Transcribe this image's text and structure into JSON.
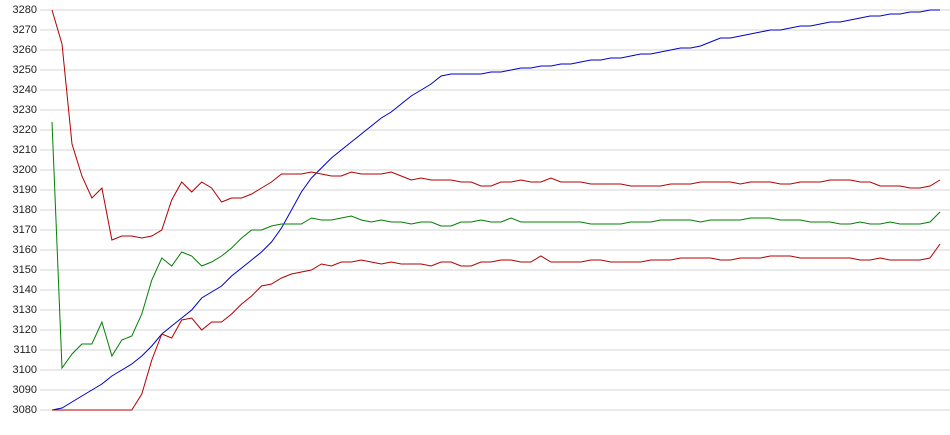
{
  "chart_data": {
    "type": "line",
    "ylim": [
      3080,
      3280
    ],
    "yticks": [
      3080,
      3090,
      3100,
      3110,
      3120,
      3130,
      3140,
      3150,
      3160,
      3170,
      3180,
      3190,
      3200,
      3210,
      3220,
      3230,
      3240,
      3250,
      3260,
      3270,
      3280
    ],
    "grid": true,
    "series": [
      {
        "color": "#0000c8",
        "values": [
          3080,
          3081,
          3084,
          3087,
          3090,
          3093,
          3097,
          3100,
          3103,
          3107,
          3112,
          3118,
          3122,
          3126,
          3130,
          3136,
          3139,
          3142,
          3147,
          3151,
          3155,
          3159,
          3164,
          3171,
          3180,
          3189,
          3196,
          3201,
          3206,
          3210,
          3214,
          3218,
          3222,
          3226,
          3229,
          3233,
          3237,
          3240,
          3243,
          3247,
          3248,
          3248,
          3248,
          3248,
          3249,
          3249,
          3250,
          3251,
          3251,
          3252,
          3252,
          3253,
          3253,
          3254,
          3255,
          3255,
          3256,
          3256,
          3257,
          3258,
          3258,
          3259,
          3260,
          3261,
          3261,
          3262,
          3264,
          3266,
          3266,
          3267,
          3268,
          3269,
          3270,
          3270,
          3271,
          3272,
          3272,
          3273,
          3274,
          3274,
          3275,
          3276,
          3277,
          3277,
          3278,
          3278,
          3279,
          3279,
          3280,
          3280
        ]
      },
      {
        "color": "#008000",
        "values": [
          3224,
          3101,
          3108,
          3113,
          3113,
          3124,
          3107,
          3115,
          3117,
          3128,
          3145,
          3156,
          3152,
          3159,
          3157,
          3152,
          3154,
          3157,
          3161,
          3166,
          3170,
          3170,
          3172,
          3173,
          3173,
          3173,
          3176,
          3175,
          3175,
          3176,
          3177,
          3175,
          3174,
          3175,
          3174,
          3174,
          3173,
          3174,
          3174,
          3172,
          3172,
          3174,
          3174,
          3175,
          3174,
          3174,
          3176,
          3174,
          3174,
          3174,
          3174,
          3174,
          3174,
          3174,
          3173,
          3173,
          3173,
          3173,
          3174,
          3174,
          3174,
          3175,
          3175,
          3175,
          3175,
          3174,
          3175,
          3175,
          3175,
          3175,
          3176,
          3176,
          3176,
          3175,
          3175,
          3175,
          3174,
          3174,
          3174,
          3173,
          3173,
          3174,
          3173,
          3173,
          3174,
          3173,
          3173,
          3173,
          3174,
          3179
        ]
      },
      {
        "color": "#b40000",
        "values": [
          3280,
          3263,
          3213,
          3197,
          3186,
          3191,
          3165,
          3167,
          3167,
          3166,
          3167,
          3170,
          3185,
          3194,
          3189,
          3194,
          3191,
          3184,
          3186,
          3186,
          3188,
          3191,
          3194,
          3198,
          3198,
          3198,
          3199,
          3198,
          3197,
          3197,
          3199,
          3198,
          3198,
          3198,
          3199,
          3197,
          3195,
          3196,
          3195,
          3195,
          3195,
          3194,
          3194,
          3192,
          3192,
          3194,
          3194,
          3195,
          3194,
          3194,
          3196,
          3194,
          3194,
          3194,
          3193,
          3193,
          3193,
          3193,
          3192,
          3192,
          3192,
          3192,
          3193,
          3193,
          3193,
          3194,
          3194,
          3194,
          3194,
          3193,
          3194,
          3194,
          3194,
          3193,
          3193,
          3194,
          3194,
          3194,
          3195,
          3195,
          3195,
          3194,
          3194,
          3192,
          3192,
          3192,
          3191,
          3191,
          3192,
          3195
        ]
      },
      {
        "color": "#b40000",
        "values": [
          3080,
          3080,
          3080,
          3080,
          3080,
          3080,
          3080,
          3080,
          3080,
          3088,
          3105,
          3118,
          3116,
          3125,
          3126,
          3120,
          3124,
          3124,
          3128,
          3133,
          3137,
          3142,
          3143,
          3146,
          3148,
          3149,
          3150,
          3153,
          3152,
          3154,
          3154,
          3155,
          3154,
          3153,
          3154,
          3153,
          3153,
          3153,
          3152,
          3154,
          3154,
          3152,
          3152,
          3154,
          3154,
          3155,
          3155,
          3154,
          3154,
          3157,
          3154,
          3154,
          3154,
          3154,
          3155,
          3155,
          3154,
          3154,
          3154,
          3154,
          3155,
          3155,
          3155,
          3156,
          3156,
          3156,
          3156,
          3155,
          3155,
          3156,
          3156,
          3156,
          3157,
          3157,
          3157,
          3156,
          3156,
          3156,
          3156,
          3156,
          3156,
          3155,
          3155,
          3156,
          3155,
          3155,
          3155,
          3155,
          3156,
          3163
        ]
      }
    ]
  }
}
